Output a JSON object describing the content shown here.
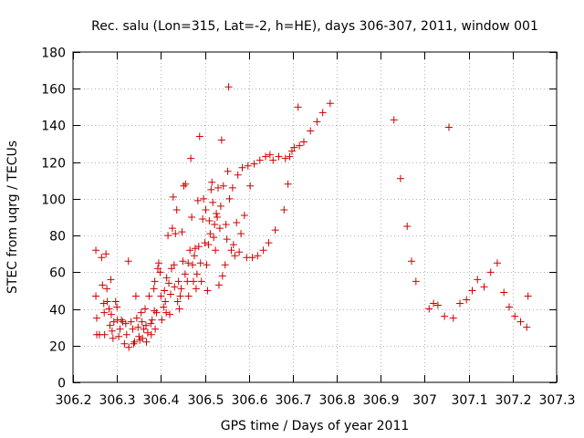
{
  "chart_data": {
    "type": "scatter",
    "title": "Rec. salu (Lon=315, Lat=-2, h=HE), days 306-307, 2011, window 001",
    "xlabel": "GPS time / Days of year 2011",
    "ylabel": "STEC from uqrg / TECUs",
    "xlim": [
      306.2,
      307.3
    ],
    "ylim": [
      0,
      180
    ],
    "xticks": [
      306.2,
      306.3,
      306.4,
      306.5,
      306.6,
      306.7,
      306.8,
      306.9,
      307.0,
      307.1,
      307.2,
      307.3
    ],
    "xtick_labels": [
      "306.2",
      "306.3",
      "306.4",
      "306.5",
      "306.6",
      "306.7",
      "306.8",
      "306.9",
      "307",
      "307.1",
      "307.2",
      "307.3"
    ],
    "yticks": [
      0,
      20,
      40,
      60,
      80,
      100,
      120,
      140,
      160,
      180
    ],
    "ytick_labels": [
      "0",
      "20",
      "40",
      "60",
      "80",
      "100",
      "120",
      "140",
      "160",
      "180"
    ],
    "grid": true,
    "marker": "+",
    "color": "#cc0000",
    "series": [
      {
        "points": [
          [
            306.252,
            72
          ],
          [
            306.252,
            47
          ],
          [
            306.254,
            35
          ],
          [
            306.254,
            26
          ],
          [
            306.26,
            26
          ],
          [
            306.265,
            68
          ],
          [
            306.267,
            53
          ],
          [
            306.27,
            43
          ],
          [
            306.271,
            38
          ],
          [
            306.272,
            26
          ],
          [
            306.275,
            70
          ],
          [
            306.277,
            51
          ],
          [
            306.278,
            44
          ],
          [
            306.282,
            40
          ],
          [
            306.284,
            31
          ],
          [
            306.286,
            56
          ],
          [
            306.287,
            37
          ],
          [
            306.289,
            28
          ],
          [
            306.291,
            24
          ],
          [
            306.293,
            33
          ],
          [
            306.297,
            44
          ],
          [
            306.3,
            41
          ],
          [
            306.301,
            34
          ],
          [
            306.304,
            25
          ],
          [
            306.307,
            29
          ],
          [
            306.31,
            34
          ],
          [
            306.313,
            33
          ],
          [
            306.317,
            21
          ],
          [
            306.32,
            32
          ],
          [
            306.322,
            26
          ],
          [
            306.326,
            66
          ],
          [
            306.327,
            19
          ],
          [
            306.332,
            33
          ],
          [
            306.336,
            29
          ],
          [
            306.338,
            21
          ],
          [
            306.34,
            22
          ],
          [
            306.343,
            47
          ],
          [
            306.345,
            35
          ],
          [
            306.348,
            30
          ],
          [
            306.35,
            25
          ],
          [
            306.352,
            23
          ],
          [
            306.355,
            38
          ],
          [
            306.357,
            33
          ],
          [
            306.358,
            24
          ],
          [
            306.361,
            29
          ],
          [
            306.364,
            40
          ],
          [
            306.366,
            31
          ],
          [
            306.367,
            22
          ],
          [
            306.37,
            27
          ],
          [
            306.373,
            47
          ],
          [
            306.377,
            32
          ],
          [
            306.378,
            26
          ],
          [
            306.38,
            34
          ],
          [
            306.384,
            51
          ],
          [
            306.385,
            39
          ],
          [
            306.386,
            55
          ],
          [
            306.387,
            29
          ],
          [
            306.39,
            38
          ],
          [
            306.393,
            62
          ],
          [
            306.395,
            65
          ],
          [
            306.398,
            60
          ],
          [
            306.4,
            47
          ],
          [
            306.402,
            34
          ],
          [
            306.406,
            41
          ],
          [
            306.408,
            50
          ],
          [
            306.41,
            44
          ],
          [
            306.412,
            38
          ],
          [
            306.413,
            57
          ],
          [
            306.416,
            80
          ],
          [
            306.418,
            54
          ],
          [
            306.42,
            37
          ],
          [
            306.422,
            48
          ],
          [
            306.424,
            62
          ],
          [
            306.426,
            84
          ],
          [
            306.428,
            101
          ],
          [
            306.43,
            64
          ],
          [
            306.431,
            52
          ],
          [
            306.433,
            81
          ],
          [
            306.436,
            94
          ],
          [
            306.438,
            44
          ],
          [
            306.44,
            55
          ],
          [
            306.442,
            40
          ],
          [
            306.444,
            47
          ],
          [
            306.446,
            51
          ],
          [
            306.448,
            82
          ],
          [
            306.45,
            66
          ],
          [
            306.452,
            107
          ],
          [
            306.455,
            59
          ],
          [
            306.456,
            108
          ],
          [
            306.46,
            55
          ],
          [
            306.462,
            65
          ],
          [
            306.463,
            47
          ],
          [
            306.466,
            72
          ],
          [
            306.468,
            122
          ],
          [
            306.47,
            90
          ],
          [
            306.472,
            64
          ],
          [
            306.474,
            55
          ],
          [
            306.476,
            69
          ],
          [
            306.478,
            73
          ],
          [
            306.48,
            51
          ],
          [
            306.482,
            59
          ],
          [
            306.484,
            99
          ],
          [
            306.486,
            74
          ],
          [
            306.488,
            134
          ],
          [
            306.49,
            65
          ],
          [
            306.492,
            55
          ],
          [
            306.495,
            89
          ],
          [
            306.497,
            100
          ],
          [
            306.5,
            76
          ],
          [
            306.502,
            94
          ],
          [
            306.504,
            64
          ],
          [
            306.506,
            50
          ],
          [
            306.508,
            75
          ],
          [
            306.51,
            88
          ],
          [
            306.512,
            81
          ],
          [
            306.514,
            105
          ],
          [
            306.516,
            109
          ],
          [
            306.518,
            98
          ],
          [
            306.52,
            79
          ],
          [
            306.522,
            86
          ],
          [
            306.524,
            72
          ],
          [
            306.526,
            92
          ],
          [
            306.528,
            90
          ],
          [
            306.53,
            106
          ],
          [
            306.532,
            53
          ],
          [
            306.534,
            84
          ],
          [
            306.536,
            96
          ],
          [
            306.538,
            132
          ],
          [
            306.54,
            58
          ],
          [
            306.542,
            107
          ],
          [
            306.546,
            64
          ],
          [
            306.548,
            86
          ],
          [
            306.55,
            78
          ],
          [
            306.552,
            115
          ],
          [
            306.554,
            161
          ],
          [
            306.556,
            100
          ],
          [
            306.56,
            72
          ],
          [
            306.563,
            106
          ],
          [
            306.565,
            75
          ],
          [
            306.568,
            69
          ],
          [
            306.572,
            87
          ],
          [
            306.575,
            113
          ],
          [
            306.578,
            71
          ],
          [
            306.582,
            81
          ],
          [
            306.585,
            117
          ],
          [
            306.59,
            91
          ],
          [
            306.595,
            68
          ],
          [
            306.598,
            118
          ],
          [
            306.603,
            107
          ],
          [
            306.608,
            68
          ],
          [
            306.612,
            119
          ],
          [
            306.62,
            69
          ],
          [
            306.625,
            121
          ],
          [
            306.633,
            72
          ],
          [
            306.638,
            123
          ],
          [
            306.645,
            76
          ],
          [
            306.648,
            124
          ],
          [
            306.655,
            121
          ],
          [
            306.66,
            83
          ],
          [
            306.668,
            123
          ],
          [
            306.68,
            94
          ],
          [
            306.683,
            122
          ],
          [
            306.689,
            108
          ],
          [
            306.693,
            123
          ],
          [
            306.698,
            126
          ],
          [
            306.703,
            128
          ],
          [
            306.712,
            150
          ],
          [
            306.715,
            129
          ],
          [
            306.725,
            131
          ],
          [
            306.74,
            137
          ],
          [
            306.755,
            142
          ],
          [
            306.768,
            147
          ],
          [
            306.785,
            152
          ],
          [
            306.93,
            143
          ],
          [
            306.945,
            111
          ],
          [
            306.96,
            85
          ],
          [
            306.97,
            66
          ],
          [
            306.98,
            55
          ],
          [
            307.01,
            40
          ],
          [
            307.02,
            43
          ],
          [
            307.03,
            42
          ],
          [
            307.045,
            36
          ],
          [
            307.055,
            139
          ],
          [
            307.065,
            35
          ],
          [
            307.08,
            43
          ],
          [
            307.095,
            45
          ],
          [
            307.108,
            50
          ],
          [
            307.12,
            56
          ],
          [
            307.135,
            52
          ],
          [
            307.15,
            60
          ],
          [
            307.165,
            65
          ],
          [
            307.18,
            49
          ],
          [
            307.192,
            41
          ],
          [
            307.205,
            36
          ],
          [
            307.218,
            33
          ],
          [
            307.232,
            30
          ],
          [
            307.235,
            47
          ]
        ]
      }
    ]
  }
}
